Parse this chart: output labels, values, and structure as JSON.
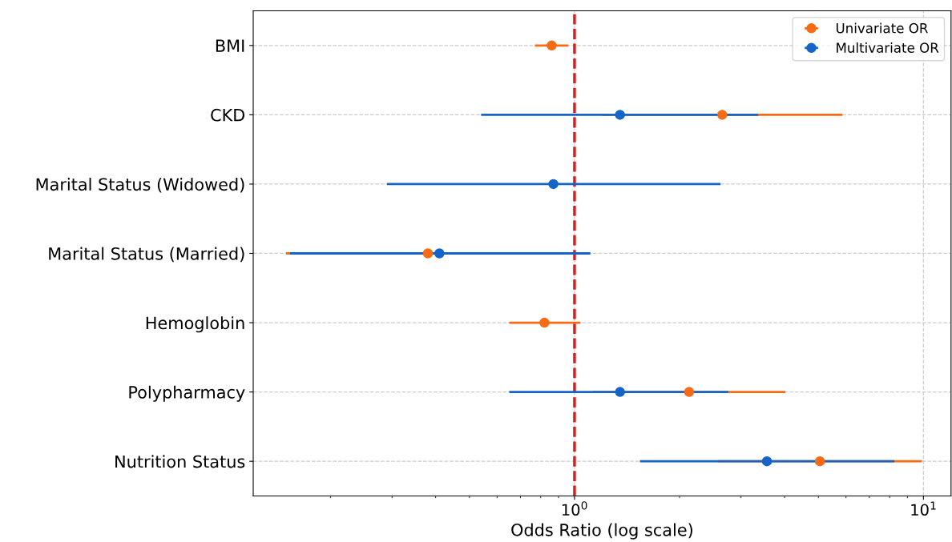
{
  "chart_data": {
    "type": "scatter",
    "orientation": "horizontal",
    "xlabel": "Odds Ratio (log scale)",
    "log": "x",
    "categories": [
      "BMI",
      "CKD",
      "Marital Status (Widowed)",
      "Marital Status (Married)",
      "Hemoglobin",
      "Polypharmacy",
      "Nutrition Status"
    ],
    "series": [
      {
        "name": "Univariate OR",
        "color": "#f76b15",
        "values": [
          0.86,
          2.65,
          null,
          0.38,
          0.82,
          2.13,
          5.05
        ],
        "errors": [
          [
            0.77,
            0.96
          ],
          [
            1.2,
            5.86
          ],
          null,
          [
            0.149,
            0.97
          ],
          [
            0.65,
            1.04
          ],
          [
            1.13,
            4.02
          ],
          [
            2.58,
            9.9
          ]
        ]
      },
      {
        "name": "Multivariate OR",
        "color": "#1565c8",
        "values": [
          null,
          1.35,
          0.87,
          0.41,
          null,
          1.35,
          3.56
        ],
        "errors": [
          null,
          [
            0.54,
            3.36
          ],
          [
            0.29,
            2.62
          ],
          [
            0.153,
            1.11
          ],
          null,
          [
            0.65,
            2.76
          ],
          [
            1.54,
            8.26
          ]
        ]
      }
    ],
    "xlim": [
      0.12,
      12.0
    ],
    "xticks": [
      {
        "value": 1,
        "label": "10$^{0}$"
      },
      {
        "value": 10,
        "label": "10$^{1}$"
      }
    ],
    "ref_lines": [
      {
        "axis": "x",
        "value": 1,
        "color": "#d62020",
        "line_style": "dashed"
      }
    ],
    "grid": true,
    "legend": "top right",
    "marker": "circle"
  }
}
